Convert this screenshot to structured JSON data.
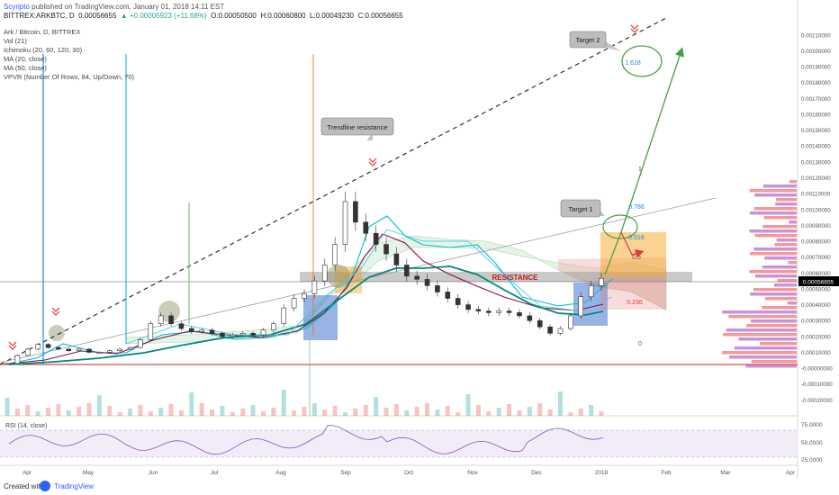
{
  "header": {
    "author": "Scyripto",
    "published": "published on TradingView.com, January 01, 2018 14:11 EST",
    "symbol": "BITTREX:ARKBTC, D",
    "last": "0.00056655",
    "change": "▲ +0.00005923 (+11.68%)",
    "open": "O:0.00050500",
    "high": "H:0.00060800",
    "low": "L:0.00049230",
    "close": "C:0.00056655"
  },
  "indicators": [
    "Ark / Bitcoin, D, BITTREX",
    "Vol (21)",
    "Ichimoku (20, 60, 120, 30)",
    "MA (20, close)",
    "MA (50, close)",
    "VPVR (Number Of Rows, 84, Up/Down, 70)"
  ],
  "annotations": {
    "trendline": "Trendline resistance",
    "target1": "Target 1",
    "target2": "Target 2",
    "resistance": "RESISTANCE",
    "fib": [
      "1",
      "0.786",
      "0.618",
      "0.5",
      "0.236",
      "0",
      "1.618"
    ]
  },
  "rsi_label": "RSI (14, close)",
  "rsi_ticks": [
    "75.0000",
    "50.0000",
    "25.0000"
  ],
  "footer": {
    "created": "Created with",
    "brand": "TradingView"
  },
  "colors": {
    "up": "#26a69a",
    "down": "#ef5350",
    "ma20": "#880e4f",
    "ma50": "#00897b",
    "tenkan": "#00bcd4",
    "resistance": "#9e9e9e",
    "target": "#43a047",
    "rsi": "#7e57c2"
  },
  "chart_data": {
    "type": "candlestick",
    "ylim": [
      -0.0003,
      0.00215
    ],
    "price_ticks": [
      "0.00210000",
      "0.00200000",
      "0.00190000",
      "0.00180000",
      "0.00170000",
      "0.00160000",
      "0.00150000",
      "0.00140000",
      "0.00130000",
      "0.00120000",
      "0.00110000",
      "0.00100000",
      "0.00090000",
      "0.00080000",
      "0.00070000",
      "0.00060000",
      "0.00050000",
      "0.00040000",
      "0.00030000",
      "0.00020000",
      "0.00010000",
      "-0.00000000",
      "-0.00010000",
      "-0.00020000"
    ],
    "months": [
      "Apr",
      "May",
      "Jun",
      "Jul",
      "Aug",
      "Sep",
      "Oct",
      "Nov",
      "Dec",
      "2018",
      "Feb",
      "Mar",
      "Apr"
    ],
    "last_price": "0.00056655",
    "close_series": [
      3e-05,
      8e-05,
      0.00012,
      0.00015,
      0.00013,
      0.00012,
      0.00011,
      0.00012,
      0.0001,
      0.0001,
      0.00011,
      0.00012,
      0.00013,
      0.00018,
      0.00028,
      0.00033,
      0.00028,
      0.00025,
      0.00023,
      0.00024,
      0.00022,
      0.0002,
      0.00021,
      0.00022,
      0.00021,
      0.00024,
      0.00028,
      0.00038,
      0.00044,
      0.00047,
      0.00055,
      0.00065,
      0.00078,
      0.00105,
      0.00092,
      0.00085,
      0.00078,
      0.00072,
      0.00065,
      0.00058,
      0.00056,
      0.00052,
      0.00048,
      0.00044,
      0.0004,
      0.00037,
      0.00036,
      0.00035,
      0.00036,
      0.00035,
      0.00033,
      0.0003,
      0.00026,
      0.00022,
      0.00025,
      0.00033,
      0.00045,
      0.00052,
      0.00056655
    ]
  }
}
